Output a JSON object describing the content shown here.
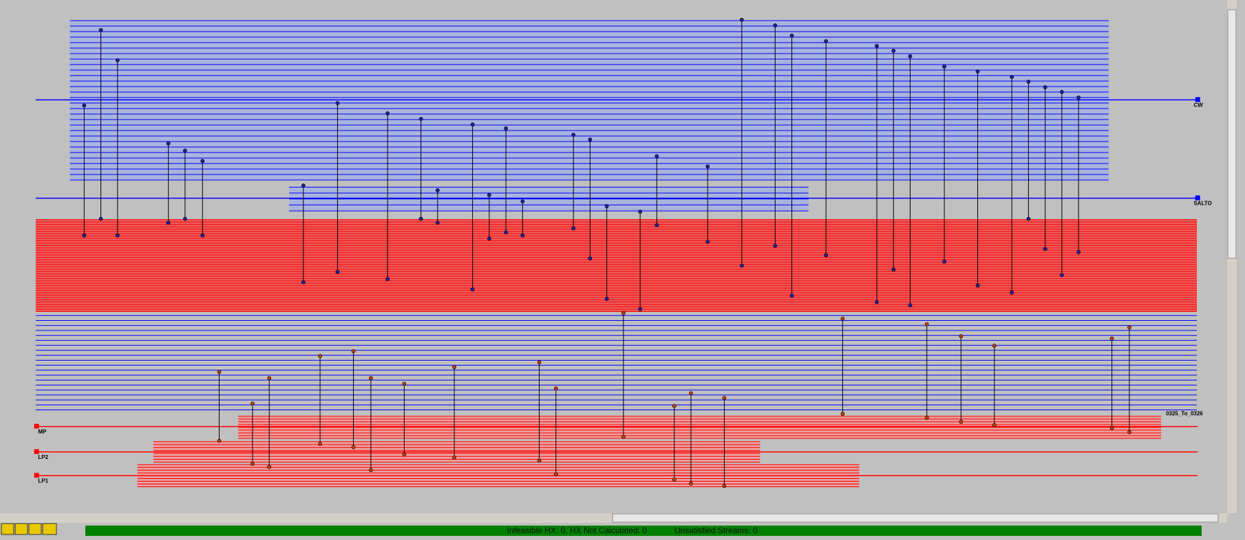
{
  "utilities": [
    {
      "name": "CW"
    },
    {
      "name": "SALTO"
    },
    {
      "name": "MP"
    },
    {
      "name": "LP2"
    },
    {
      "name": "LP1"
    }
  ],
  "stream_label": "0325_To_0326",
  "status_bar": {
    "hx_status": "Infeasible HX: 0, HX Not Calculated: 0",
    "streams_status": "Unsatisfied Streams: 0"
  }
}
